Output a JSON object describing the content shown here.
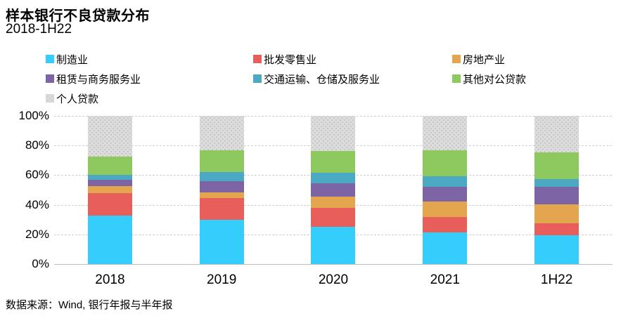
{
  "title": "样本银行不良贷款分布",
  "subtitle": "2018-1H22",
  "source": "数据来源：Wind, 银行年报与半年报",
  "colors": {
    "manufacturing": "#35CDFB",
    "wholesale_retail": "#E75E5B",
    "real_estate": "#E3A64F",
    "leasing_business_services": "#7D64A5",
    "transport_storage_services": "#4BA9C4",
    "other_corporate": "#8DC95E",
    "personal": "#DCDCDC",
    "gridline": "#CFCFCF",
    "axis_line": "#BFBFBF"
  },
  "chart_data": {
    "type": "bar",
    "stacked": true,
    "unit": "%",
    "title": "样本银行不良贷款分布",
    "subtitle": "2018-1H22",
    "xlabel": "",
    "ylabel": "",
    "ylim": [
      0,
      100
    ],
    "grid": true,
    "legend_position": "top",
    "categories": [
      "2018",
      "2019",
      "2020",
      "2021",
      "1H22"
    ],
    "yticks": [
      {
        "label": "0%",
        "value": 0
      },
      {
        "label": "20%",
        "value": 20
      },
      {
        "label": "40%",
        "value": 40
      },
      {
        "label": "60%",
        "value": 60
      },
      {
        "label": "80%",
        "value": 80
      },
      {
        "label": "100%",
        "value": 100
      }
    ],
    "series": [
      {
        "name": "制造业",
        "color": "#35CDFB",
        "values": [
          32.5,
          30,
          25,
          21.5,
          19.5
        ]
      },
      {
        "name": "批发零售业",
        "color": "#E75E5B",
        "values": [
          15.5,
          14.5,
          13,
          10.5,
          8
        ]
      },
      {
        "name": "房地产业",
        "color": "#E3A64F",
        "values": [
          4.5,
          4,
          7.5,
          10,
          13
        ]
      },
      {
        "name": "租赁与商务服务业",
        "color": "#7D64A5",
        "values": [
          4.5,
          7.5,
          9,
          10,
          11.5
        ]
      },
      {
        "name": "交通运输、仓储及服务业",
        "color": "#4BA9C4",
        "values": [
          3,
          6,
          7,
          7.5,
          5.5
        ]
      },
      {
        "name": "其他对公贷款",
        "color": "#8DC95E",
        "values": [
          12.5,
          15,
          15,
          17.5,
          18
        ]
      },
      {
        "name": "个人贷款",
        "color": "#DCDCDC",
        "pattern": "stipple",
        "values": [
          27.5,
          23,
          23.5,
          23,
          24.5
        ]
      }
    ]
  }
}
